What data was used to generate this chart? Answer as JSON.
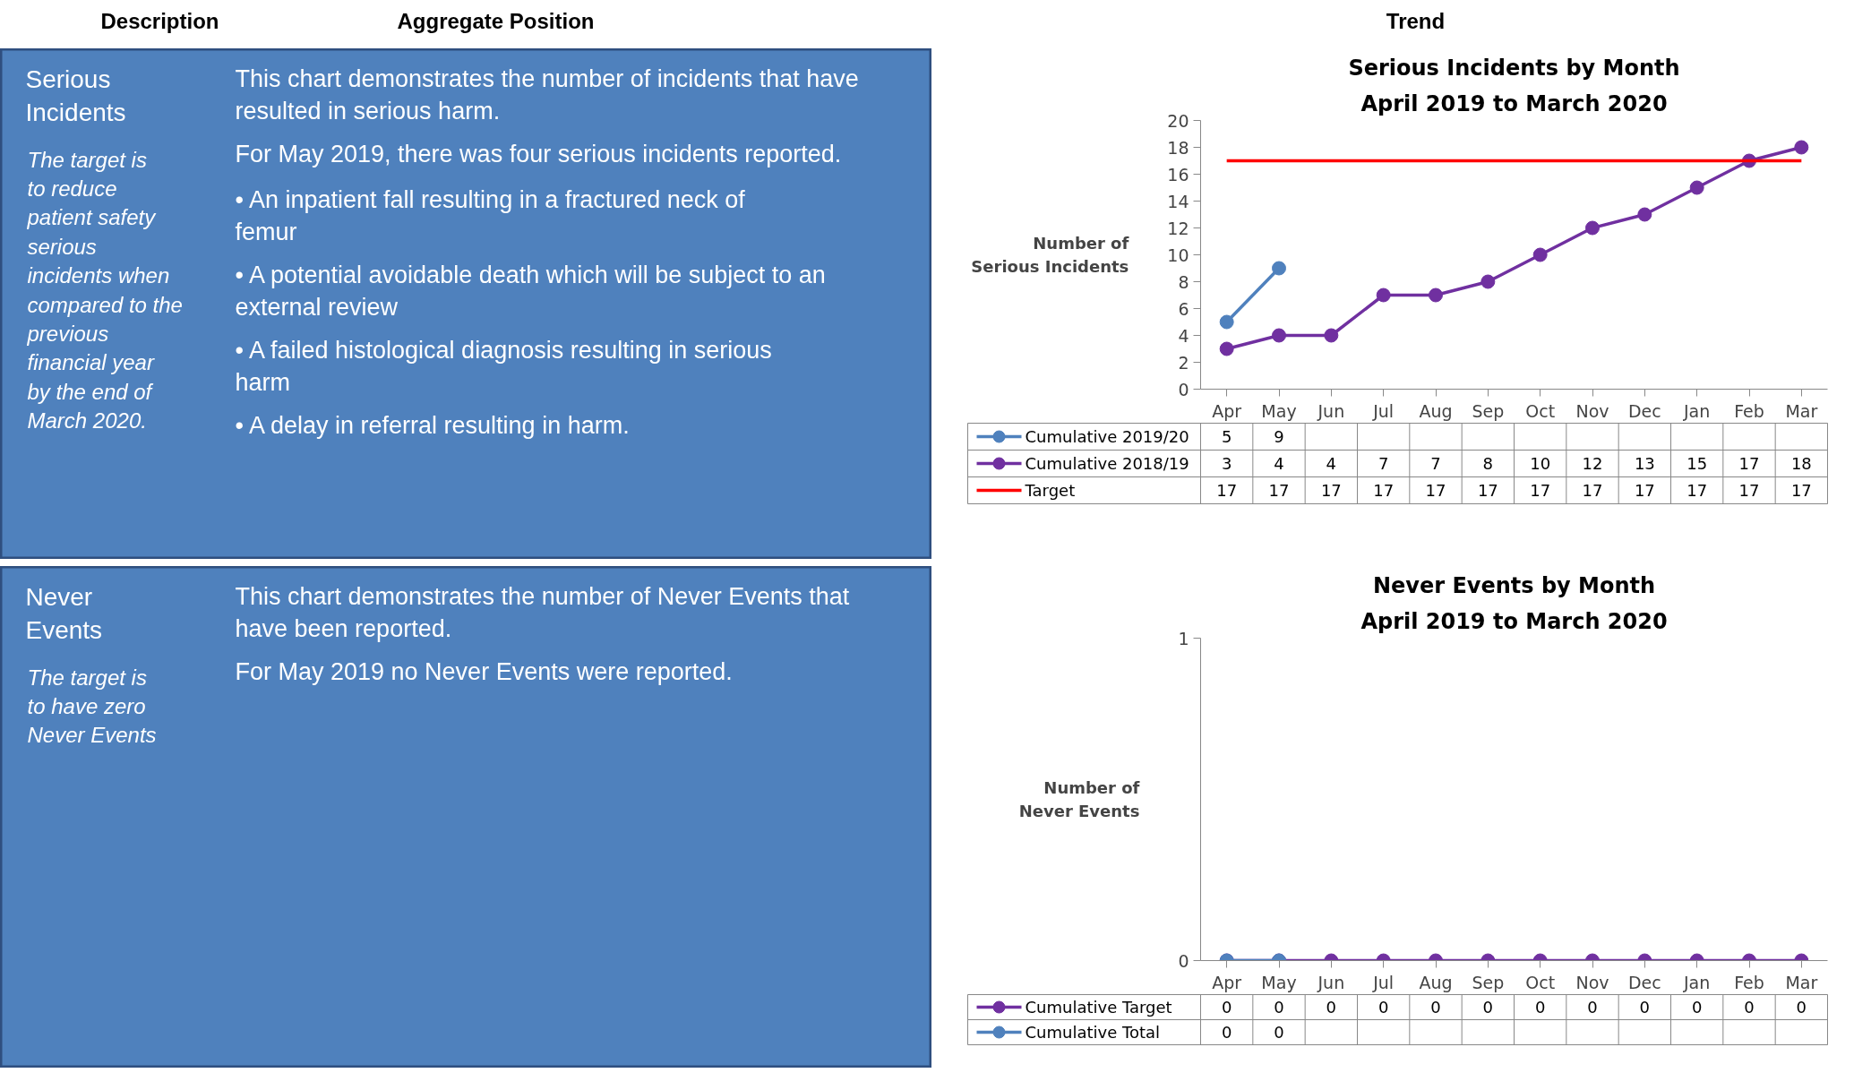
{
  "chart_data": [
    {
      "type": "other",
      "annotations": [
        "Description",
        "Aggregate Position",
        "Trend"
      ]
    },
    {
      "type": "other",
      "title": "Serious Incidents",
      "subtitle": "The target is to reduce patient safety serious incidents when compared to the previous financial year by the end of March 2020.",
      "annotations": [
        "This chart demonstrates the number of incidents that have resulted in serious harm.",
        "For May 2019, there was four serious incidents reported.",
        "• An inpatient fall resulting in a fractured neck of femur",
        "• A potential avoidable death which will be subject to an external review",
        "• A failed histological diagnosis resulting in serious harm",
        "• A delay in referral resulting in harm."
      ]
    },
    {
      "type": "line",
      "title": "Serious Incidents by Month",
      "subtitle": "April 2019 to March 2020",
      "ylabel": "Number of Serious Incidents",
      "categories": [
        "Apr",
        "May",
        "Jun",
        "Jul",
        "Aug",
        "Sep",
        "Oct",
        "Nov",
        "Dec",
        "Jan",
        "Feb",
        "Mar"
      ],
      "series": [
        {
          "name": "Cumulative 2019/20",
          "color": "#4f81bd",
          "values": [
            5,
            9,
            null,
            null,
            null,
            null,
            null,
            null,
            null,
            null,
            null,
            null
          ]
        },
        {
          "name": "Cumulative 2018/19",
          "color": "#7030a0",
          "values": [
            3,
            4,
            4,
            7,
            7,
            8,
            10,
            12,
            13,
            15,
            17,
            18
          ]
        },
        {
          "name": "Target",
          "color": "#ff0000",
          "marker": "none",
          "values": [
            17,
            17,
            17,
            17,
            17,
            17,
            17,
            17,
            17,
            17,
            17,
            17
          ]
        }
      ],
      "ylim": [
        0,
        20
      ],
      "yticks": [
        0,
        2,
        4,
        6,
        8,
        10,
        12,
        14,
        16,
        18,
        20
      ],
      "marker": "circle",
      "data_labels": true,
      "legend": "bottom left"
    },
    {
      "type": "other",
      "title": "Never Events",
      "subtitle": "The target is to have zero Never Events",
      "annotations": [
        "This chart demonstrates the number of Never Events that have been reported.",
        "For May 2019 no Never Events were reported."
      ]
    },
    {
      "type": "line",
      "title": "Never Events by Month",
      "subtitle": "April 2019 to March 2020",
      "ylabel": "Number of Never Events",
      "categories": [
        "Apr",
        "May",
        "Jun",
        "Jul",
        "Aug",
        "Sep",
        "Oct",
        "Nov",
        "Dec",
        "Jan",
        "Feb",
        "Mar"
      ],
      "series": [
        {
          "name": "Cumulative Target",
          "color": "#7030a0",
          "values": [
            0,
            0,
            0,
            0,
            0,
            0,
            0,
            0,
            0,
            0,
            0,
            0
          ]
        },
        {
          "name": "Cumulative Total",
          "color": "#4f81bd",
          "values": [
            0,
            0,
            null,
            null,
            null,
            null,
            null,
            null,
            null,
            null,
            null,
            null
          ]
        }
      ],
      "ylim": [
        0,
        1
      ],
      "yticks": [
        0,
        1
      ],
      "marker": "circle",
      "data_labels": true,
      "legend": "bottom left"
    }
  ]
}
